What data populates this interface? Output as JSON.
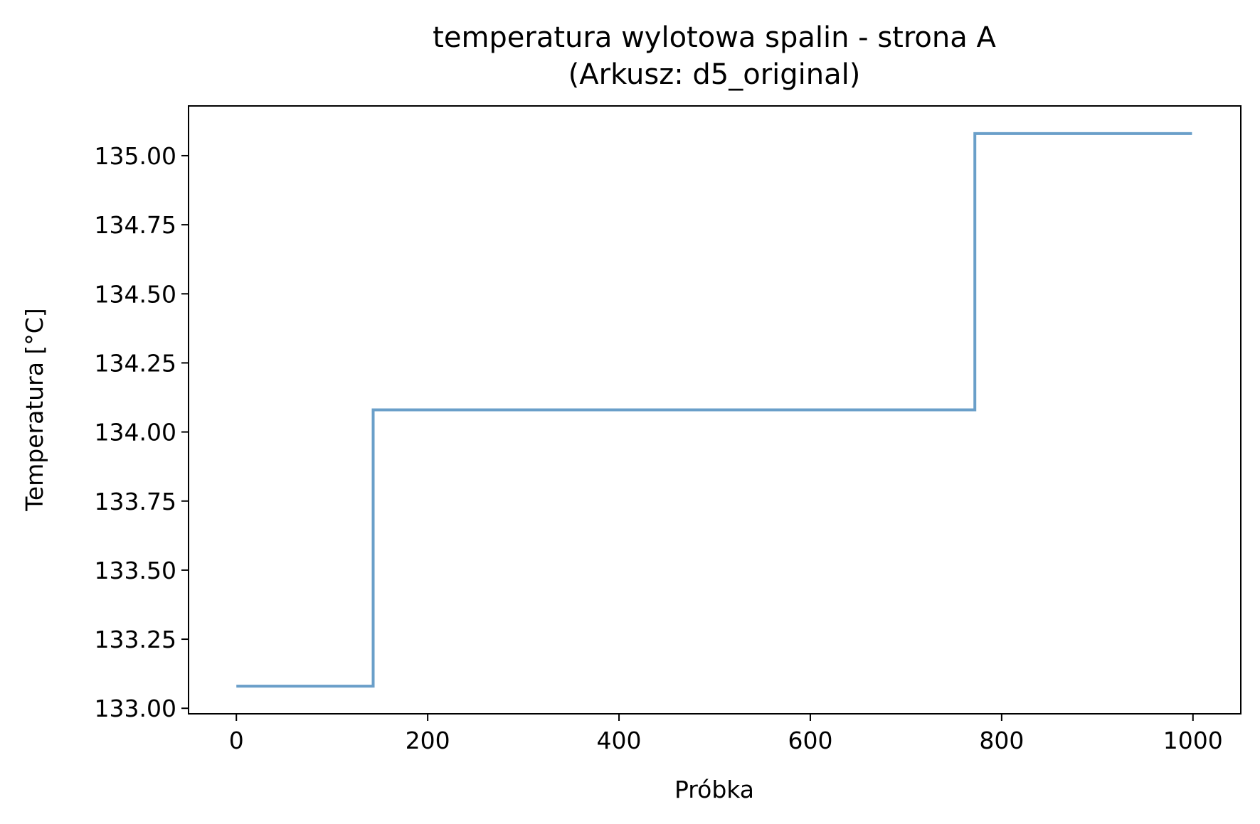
{
  "chart_data": {
    "type": "line",
    "title": "temperatura wylotowa spalin - strona A",
    "subtitle": "(Arkusz: d5_original)",
    "xlabel": "Próbka",
    "ylabel": "Temperatura [°C]",
    "xlim": [
      -50,
      1050
    ],
    "ylim": [
      132.98,
      135.18
    ],
    "xticks": [
      0,
      200,
      400,
      600,
      800,
      1000
    ],
    "xtick_labels": [
      "0",
      "200",
      "400",
      "600",
      "800",
      "1000"
    ],
    "yticks": [
      133.0,
      133.25,
      133.5,
      133.75,
      134.0,
      134.25,
      134.5,
      134.75,
      135.0
    ],
    "ytick_labels": [
      "133.00",
      "133.25",
      "133.50",
      "133.75",
      "134.00",
      "134.25",
      "134.50",
      "134.75",
      "135.00"
    ],
    "grid": false,
    "series": [
      {
        "color": "#6a9fc9",
        "x": [
          0,
          143,
          143,
          772,
          772,
          999
        ],
        "y": [
          133.08,
          133.08,
          134.08,
          134.08,
          135.08,
          135.08
        ]
      }
    ]
  }
}
